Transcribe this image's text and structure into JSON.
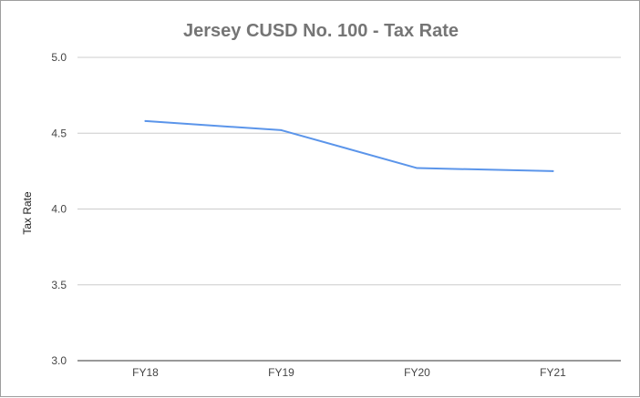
{
  "chart_data": {
    "type": "line",
    "title": "Jersey CUSD No. 100 - Tax Rate",
    "xlabel": "",
    "ylabel": "Tax Rate",
    "categories": [
      "FY18",
      "FY19",
      "FY20",
      "FY21"
    ],
    "series": [
      {
        "values": [
          4.58,
          4.52,
          4.27,
          4.25
        ],
        "color": "#5b95ea"
      }
    ],
    "ylim": [
      3.0,
      5.0
    ],
    "yticks": [
      "3.0",
      "3.5",
      "4.0",
      "4.5",
      "5.0"
    ],
    "grid": true,
    "legend": "none"
  }
}
